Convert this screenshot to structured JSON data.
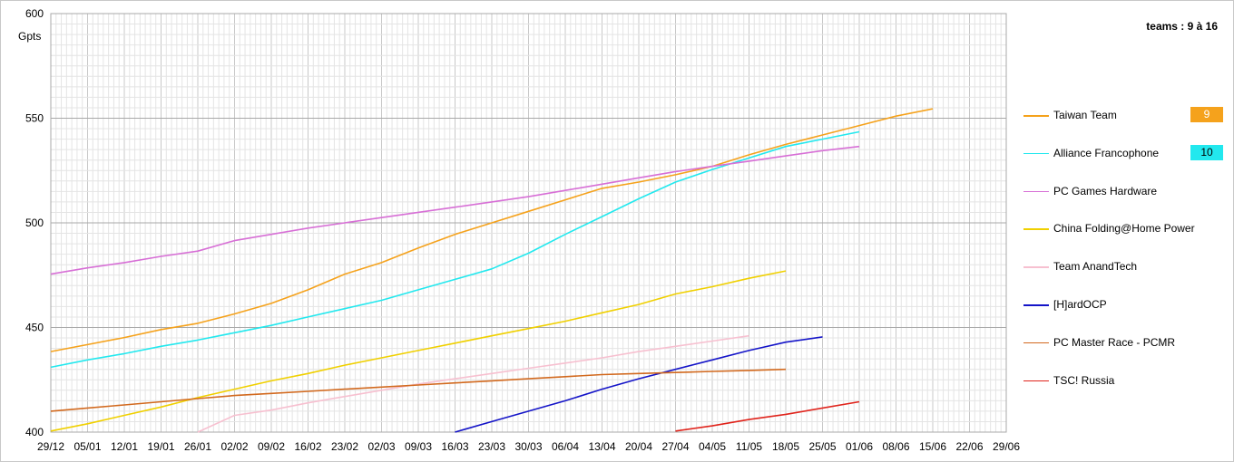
{
  "header": {
    "y_unit": "Gpts",
    "range_label": "teams : 9 à 16"
  },
  "chart_data": {
    "type": "line",
    "xlabel": "",
    "ylabel": "Gpts",
    "ylim": [
      400,
      600
    ],
    "yticks": [
      400,
      450,
      500,
      550,
      600
    ],
    "x": [
      "29/12",
      "05/01",
      "12/01",
      "19/01",
      "26/01",
      "02/02",
      "09/02",
      "16/02",
      "23/02",
      "02/03",
      "09/03",
      "16/03",
      "23/03",
      "30/03",
      "06/04",
      "13/04",
      "20/04",
      "27/04",
      "04/05",
      "11/05",
      "18/05",
      "25/05",
      "01/06",
      "08/06",
      "15/06",
      "22/06",
      "29/06"
    ],
    "grid": true,
    "legend_position": "right",
    "series": [
      {
        "name": "Taiwan Team",
        "color": "#f5a21c",
        "rank": "9",
        "values": [
          438.5,
          441.8,
          445.2,
          449.0,
          452.0,
          456.5,
          461.5,
          468.0,
          475.5,
          481.0,
          488.0,
          494.5,
          500.0,
          505.5,
          511.0,
          516.5,
          519.5,
          523.0,
          527.0,
          532.5,
          537.5,
          542.0,
          546.5,
          551.0,
          554.5,
          null,
          null
        ]
      },
      {
        "name": "Alliance Francophone",
        "color": "#22e8ee",
        "rank": "10",
        "values": [
          431.0,
          434.5,
          437.5,
          441.0,
          444.0,
          447.5,
          451.0,
          455.0,
          459.0,
          463.0,
          468.0,
          473.0,
          478.0,
          485.5,
          494.5,
          503.0,
          511.5,
          519.5,
          525.5,
          531.0,
          536.5,
          540.0,
          543.5,
          null,
          null,
          null,
          null
        ]
      },
      {
        "name": "PC Games Hardware",
        "color": "#d76fd6",
        "rank": "",
        "values": [
          475.5,
          478.5,
          481.0,
          484.0,
          486.5,
          491.5,
          494.5,
          497.5,
          500.0,
          502.5,
          505.0,
          507.5,
          510.0,
          512.5,
          515.5,
          518.5,
          521.5,
          524.5,
          527.0,
          529.5,
          532.0,
          534.5,
          536.5,
          null,
          null,
          null,
          null
        ]
      },
      {
        "name": "China Folding@Home Power",
        "color": "#f0d000",
        "rank": "",
        "values": [
          400.5,
          404.0,
          408.0,
          412.0,
          416.5,
          420.5,
          424.5,
          428.0,
          432.0,
          435.5,
          439.0,
          442.5,
          446.0,
          449.5,
          453.0,
          457.0,
          461.0,
          466.0,
          469.5,
          473.5,
          477.0,
          null,
          null,
          null,
          null,
          null,
          null
        ]
      },
      {
        "name": "Team AnandTech",
        "color": "#f7c0d0",
        "rank": "",
        "values": [
          null,
          null,
          null,
          null,
          400.0,
          408.0,
          410.5,
          414.0,
          417.0,
          420.0,
          423.0,
          425.5,
          428.0,
          430.5,
          433.0,
          435.5,
          438.5,
          441.0,
          443.5,
          446.0,
          null,
          null,
          null,
          null,
          null,
          null,
          null
        ]
      },
      {
        "name": "[H]ardOCP",
        "color": "#1414c8",
        "rank": "",
        "values": [
          null,
          null,
          null,
          null,
          null,
          null,
          null,
          null,
          null,
          null,
          null,
          400.0,
          405.0,
          410.0,
          415.0,
          420.5,
          425.5,
          430.0,
          434.5,
          439.0,
          443.0,
          445.5,
          null,
          null,
          null,
          null,
          null
        ]
      },
      {
        "name": "PC Master Race - PCMR",
        "color": "#d2691e",
        "rank": "",
        "values": [
          410.0,
          411.5,
          413.0,
          414.5,
          416.0,
          417.5,
          418.5,
          419.5,
          420.5,
          421.5,
          422.5,
          423.5,
          424.5,
          425.5,
          426.5,
          427.5,
          428.0,
          428.5,
          429.0,
          429.5,
          430.0,
          null,
          null,
          null,
          null,
          null,
          null
        ]
      },
      {
        "name": "TSC! Russia",
        "color": "#e0241c",
        "rank": "",
        "values": [
          null,
          null,
          null,
          null,
          null,
          null,
          null,
          null,
          null,
          null,
          null,
          null,
          null,
          null,
          null,
          null,
          null,
          400.5,
          403.0,
          406.0,
          408.5,
          411.5,
          414.5,
          null,
          null,
          null,
          null
        ]
      }
    ]
  }
}
